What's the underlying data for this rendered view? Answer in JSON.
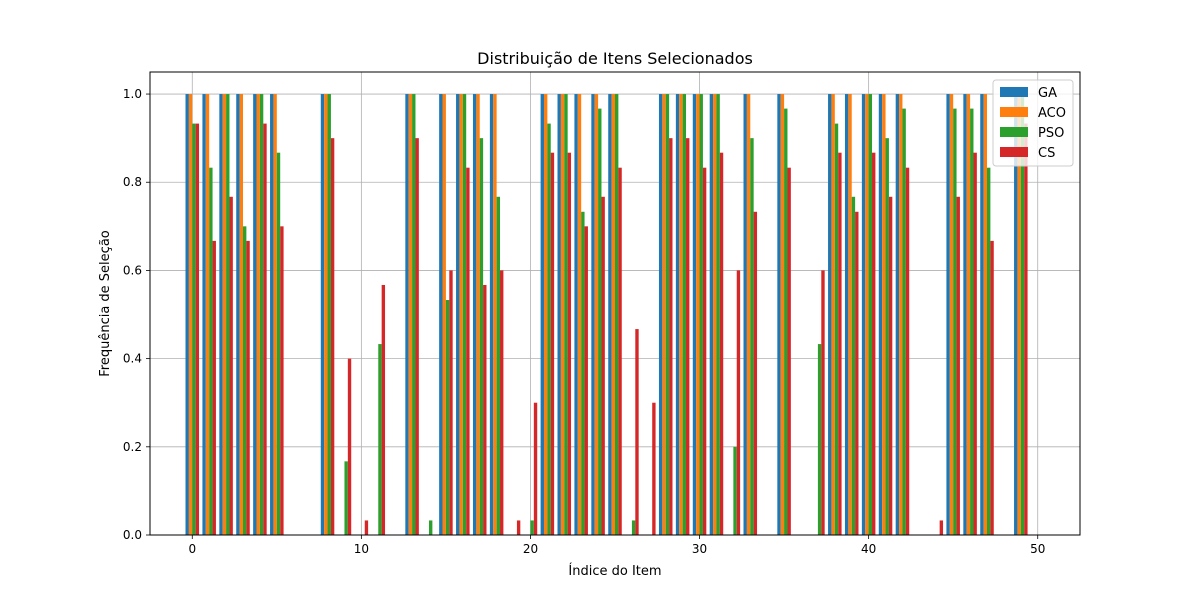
{
  "chart_data": {
    "type": "bar",
    "title": "Distribuição de Itens Selecionados",
    "xlabel": "Índice do Item",
    "ylabel": "Frequência de Seleção",
    "xlim": [
      -2.5,
      52.5
    ],
    "ylim": [
      0,
      1.05
    ],
    "xticks": [
      0,
      10,
      20,
      30,
      40,
      50
    ],
    "yticks": [
      0.0,
      0.2,
      0.4,
      0.6,
      0.8,
      1.0
    ],
    "xtick_labels": [
      "0",
      "10",
      "20",
      "30",
      "40",
      "50"
    ],
    "ytick_labels": [
      "0.0",
      "0.2",
      "0.4",
      "0.6",
      "0.8",
      "1.0"
    ],
    "grid": true,
    "legend_position": "top-right",
    "x": [
      0,
      1,
      2,
      3,
      4,
      5,
      6,
      7,
      8,
      9,
      10,
      11,
      12,
      13,
      14,
      15,
      16,
      17,
      18,
      19,
      20,
      21,
      22,
      23,
      24,
      25,
      26,
      27,
      28,
      29,
      30,
      31,
      32,
      33,
      34,
      35,
      36,
      37,
      38,
      39,
      40,
      41,
      42,
      43,
      44,
      45,
      46,
      47,
      48,
      49
    ],
    "series": [
      {
        "name": "GA",
        "color": "#1f77b4",
        "values": [
          1,
          1,
          1,
          1,
          1,
          1,
          0,
          0,
          1,
          0,
          0,
          0,
          0,
          1,
          0,
          1,
          1,
          1,
          1,
          0,
          0,
          1,
          1,
          1,
          1,
          1,
          0,
          0,
          1,
          1,
          1,
          1,
          0,
          1,
          0,
          1,
          0,
          0,
          1,
          1,
          1,
          1,
          1,
          0,
          0,
          1,
          1,
          1,
          0,
          1
        ]
      },
      {
        "name": "ACO",
        "color": "#ff7f0e",
        "values": [
          1,
          1,
          1,
          1,
          1,
          1,
          0,
          0,
          1,
          0,
          0,
          0,
          0,
          1,
          0,
          1,
          1,
          1,
          1,
          0,
          0,
          1,
          1,
          1,
          1,
          1,
          0,
          0,
          1,
          1,
          1,
          1,
          0,
          1,
          0,
          1,
          0,
          0,
          1,
          1,
          1,
          1,
          1,
          0,
          0,
          1,
          1,
          1,
          0,
          1
        ]
      },
      {
        "name": "PSO",
        "color": "#2ca02c",
        "values": [
          0.933,
          0.833,
          1,
          0.7,
          1,
          0.867,
          0,
          0,
          1,
          0.167,
          0,
          0.433,
          0,
          1,
          0.033,
          0.533,
          1,
          0.9,
          0.767,
          0,
          0.033,
          0.933,
          1,
          0.733,
          0.967,
          1,
          0.033,
          0,
          1,
          1,
          1,
          1,
          0.2,
          0.9,
          0,
          0.967,
          0,
          0.433,
          0.933,
          0.767,
          1,
          0.9,
          0.967,
          0,
          0,
          0.967,
          0.967,
          0.833,
          0,
          1
        ]
      },
      {
        "name": "CS",
        "color": "#d62728",
        "values": [
          0.933,
          0.667,
          0.767,
          0.667,
          0.933,
          0.7,
          0,
          0,
          0.9,
          0.4,
          0.033,
          0.567,
          0,
          0.9,
          0,
          0.6,
          0.833,
          0.567,
          0.6,
          0.033,
          0.3,
          0.867,
          0.867,
          0.7,
          0.767,
          0.833,
          0.467,
          0.3,
          0.9,
          0.9,
          0.833,
          0.867,
          0.6,
          0.733,
          0,
          0.833,
          0,
          0.6,
          0.867,
          0.733,
          0.867,
          0.767,
          0.833,
          0,
          0.033,
          0.767,
          0.867,
          0.667,
          0,
          0.933
        ]
      }
    ]
  }
}
